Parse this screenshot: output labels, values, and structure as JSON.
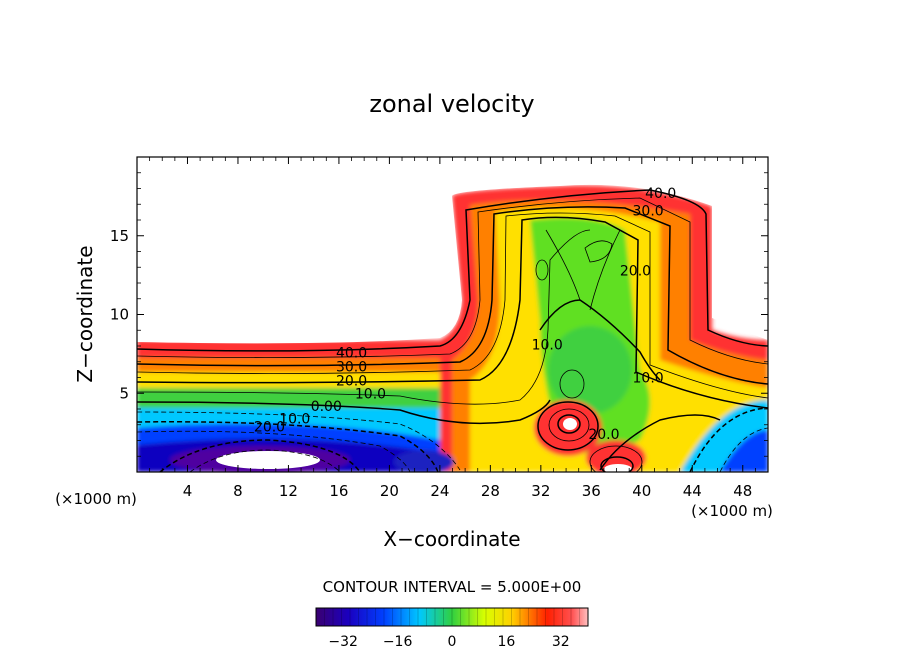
{
  "chart_data": {
    "type": "heatmap",
    "title": "zonal velocity",
    "xlabel": "X−coordinate",
    "ylabel": "Z−coordinate",
    "x_unit_left": "(×1000 m)",
    "x_unit_right": "(×1000 m)",
    "xlim": [
      0,
      50
    ],
    "ylim": [
      0,
      20
    ],
    "x_ticks": [
      4,
      8,
      12,
      16,
      20,
      24,
      28,
      32,
      36,
      40,
      44,
      48
    ],
    "y_ticks": [
      5,
      10,
      15
    ],
    "contour_interval_text": "CONTOUR INTERVAL = 5.000E+00",
    "contour_interval": 5.0,
    "contour_labels": [
      {
        "text": "40.0",
        "x": 17.0,
        "y": 7.6
      },
      {
        "text": "30.0",
        "x": 17.0,
        "y": 6.7
      },
      {
        "text": "20.0",
        "x": 17.0,
        "y": 5.8
      },
      {
        "text": "10.0",
        "x": 18.5,
        "y": 5.0
      },
      {
        "text": "0.00",
        "x": 15.0,
        "y": 4.2
      },
      {
        "text": "10.0",
        "x": 12.5,
        "y": 3.4
      },
      {
        "text": "20.0",
        "x": 10.5,
        "y": 2.9
      },
      {
        "text": "40.0",
        "x": 41.5,
        "y": 17.7
      },
      {
        "text": "30.0",
        "x": 40.5,
        "y": 16.6
      },
      {
        "text": "20.0",
        "x": 39.5,
        "y": 12.8
      },
      {
        "text": "10.0",
        "x": 32.5,
        "y": 8.1
      },
      {
        "text": "10.0",
        "x": 40.5,
        "y": 6.0
      },
      {
        "text": "20.0",
        "x": 37.0,
        "y": 2.4
      }
    ],
    "colorbar": {
      "min": -40,
      "max": 40,
      "ticks": [
        "−32",
        "−16",
        "0",
        "16",
        "32"
      ],
      "tick_values": [
        -32,
        -16,
        0,
        16,
        32
      ]
    },
    "colors": {
      "very_low": "#3a0070",
      "low": "#0000e0",
      "mid_low": "#00c8ff",
      "zero": "#30d040",
      "mid_high": "#ffff00",
      "high": "#ff2000",
      "very_high": "#ffb0b0"
    }
  }
}
